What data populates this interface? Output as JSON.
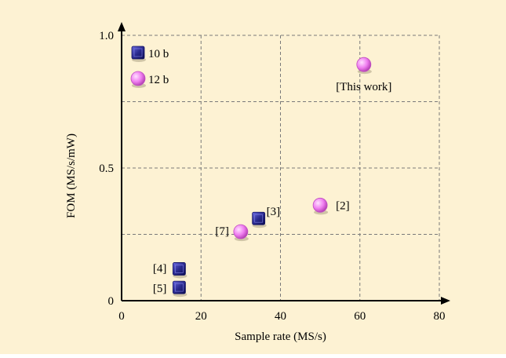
{
  "colors": {
    "background": "#fdf2d3",
    "grid": "#7a7a7a",
    "axis": "#000000",
    "series_10b": "#2a2a8e",
    "series_12b": "#f07ef0"
  },
  "chart_data": {
    "type": "scatter",
    "xlabel": "Sample rate (MS/s)",
    "ylabel": "FOM (MS/s/mW)",
    "xlim": [
      0,
      80
    ],
    "ylim": [
      0,
      1.0
    ],
    "x_ticks": [
      "0",
      "20",
      "40",
      "60",
      "80"
    ],
    "y_ticks": [
      "0",
      "0.5",
      "1.0"
    ],
    "grid": true,
    "legend_position": "top-left",
    "series": [
      {
        "name": "10 b",
        "marker": "square",
        "color": "#2a2a8e",
        "points": [
          {
            "x": 34.5,
            "y": 0.31,
            "label": "[3]"
          },
          {
            "x": 14.5,
            "y": 0.12,
            "label": "[4]"
          },
          {
            "x": 14.5,
            "y": 0.05,
            "label": "[5]"
          }
        ]
      },
      {
        "name": "12 b",
        "marker": "circle",
        "color": "#f07ef0",
        "points": [
          {
            "x": 61,
            "y": 0.89,
            "label": "[This work]"
          },
          {
            "x": 50,
            "y": 0.36,
            "label": "[2]"
          },
          {
            "x": 30,
            "y": 0.26,
            "label": "[7]"
          }
        ]
      }
    ]
  }
}
